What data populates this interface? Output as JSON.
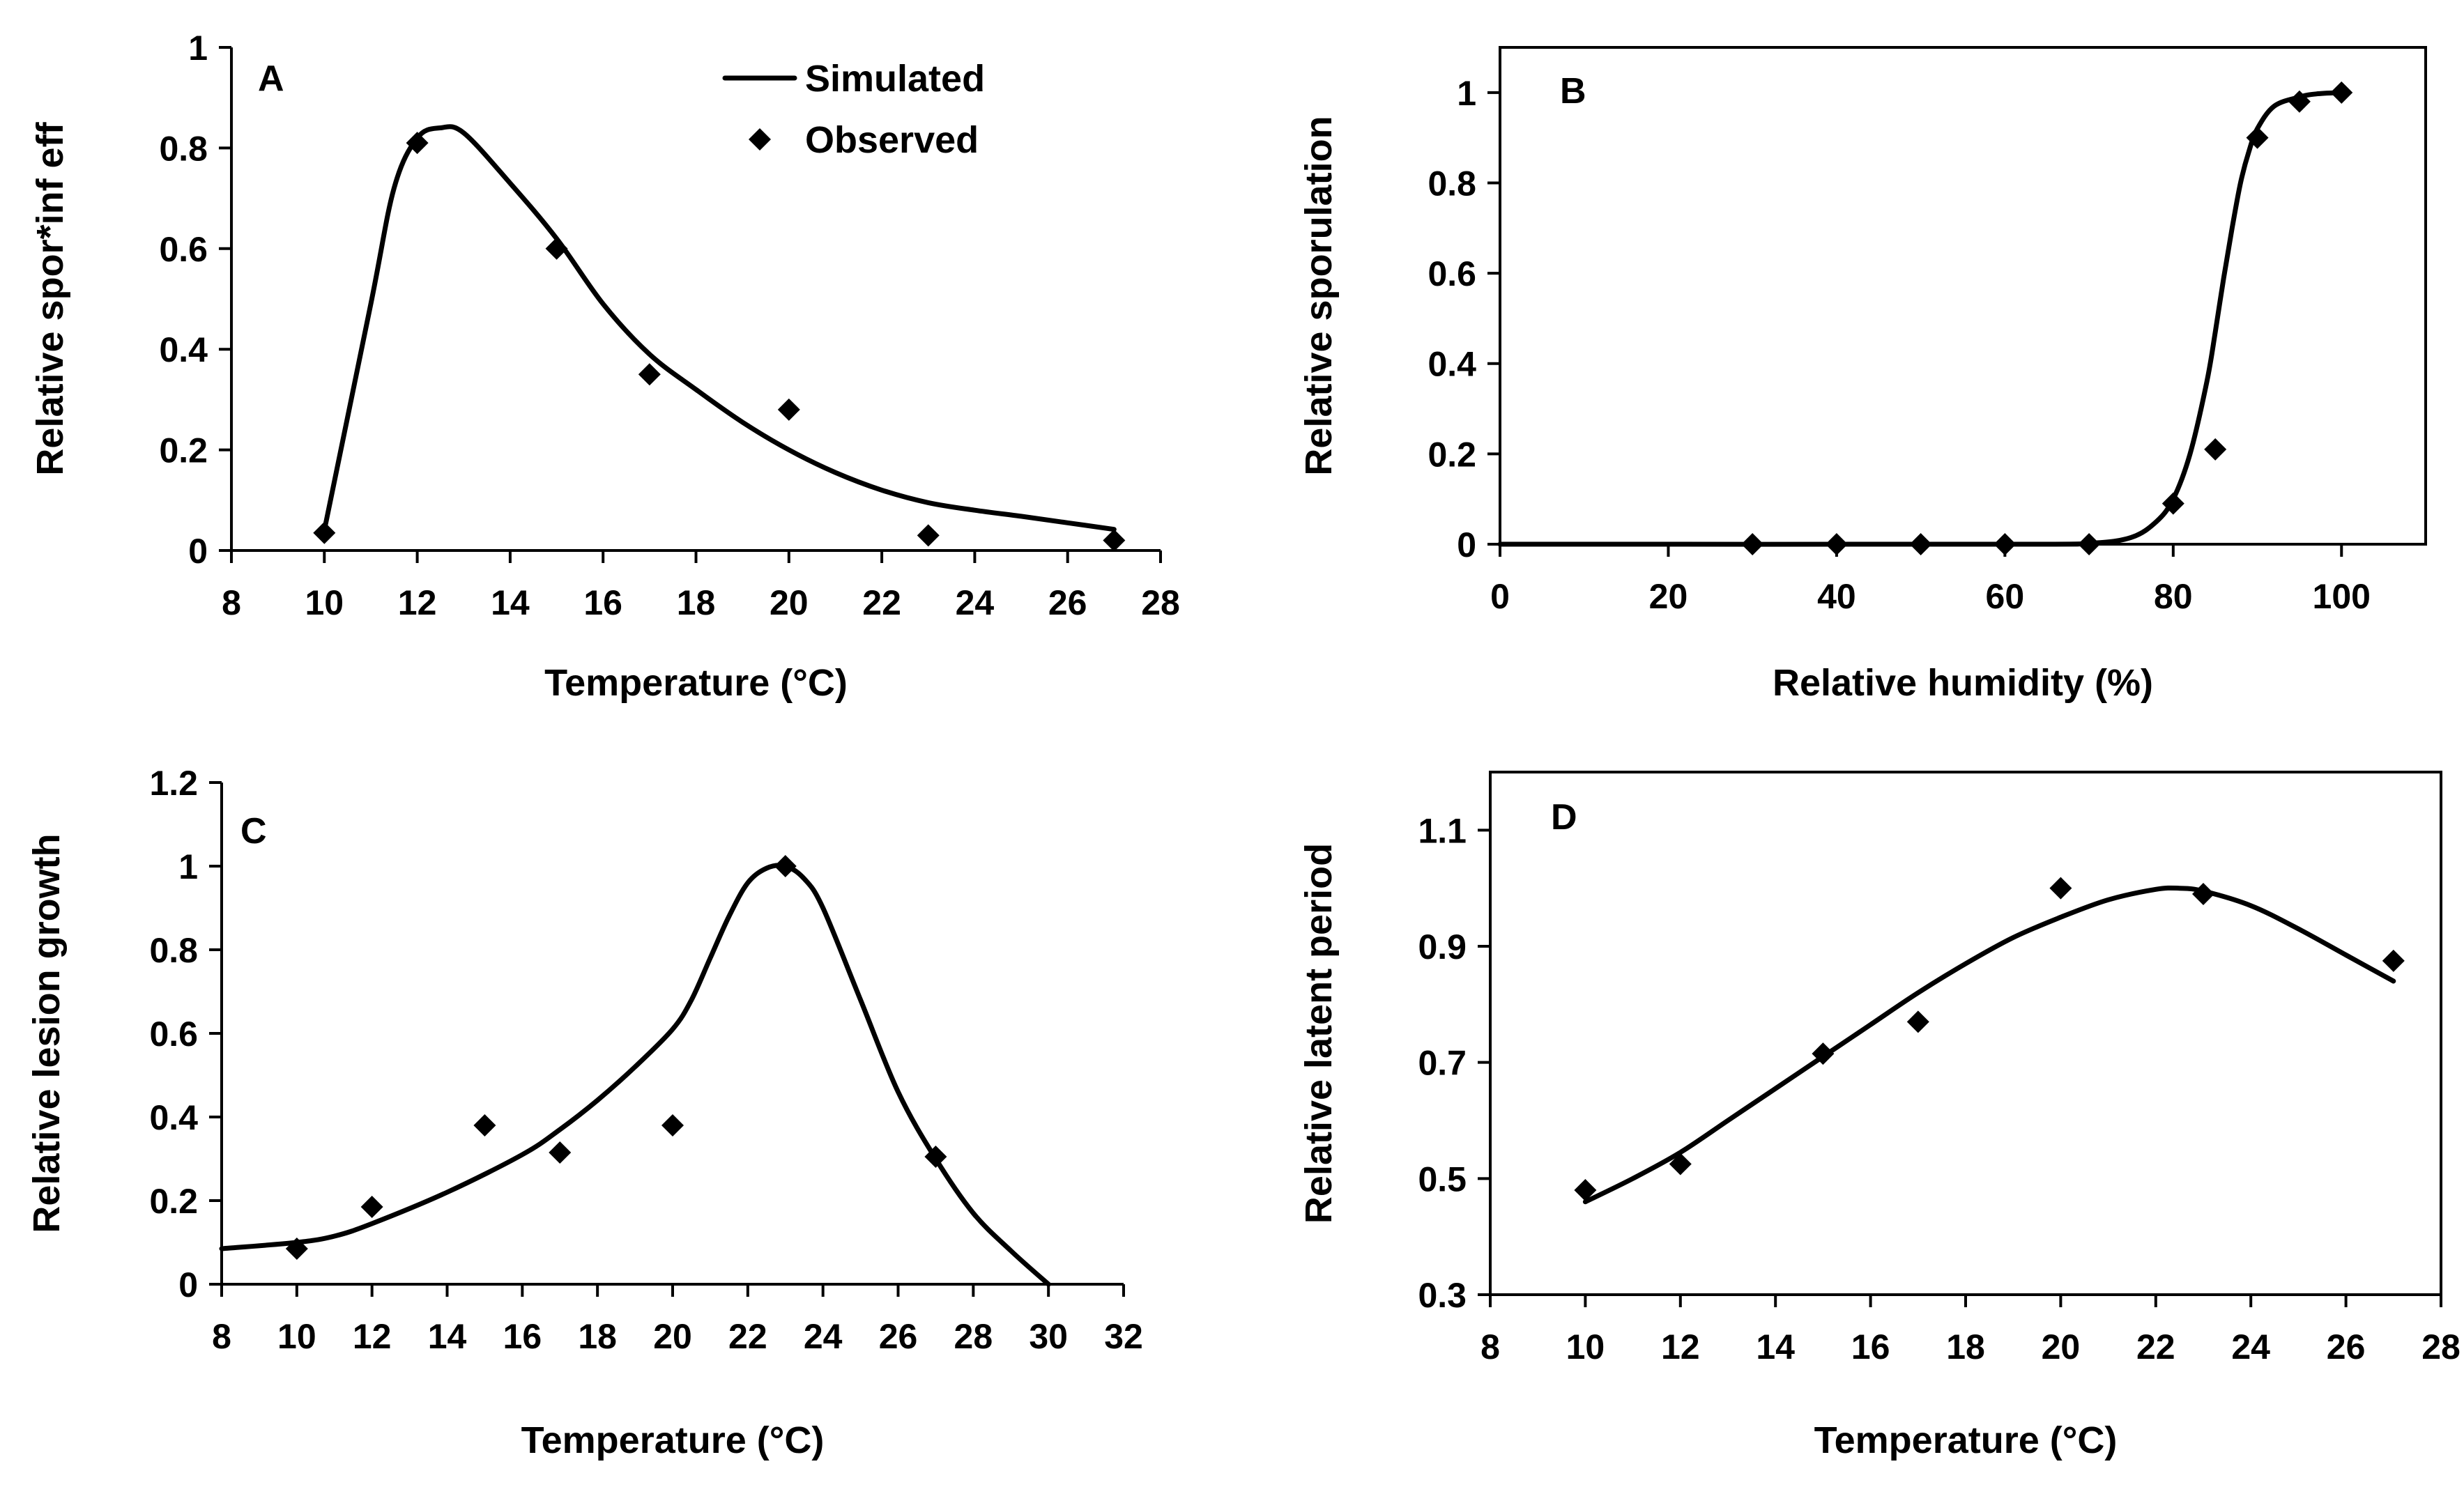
{
  "colors": {
    "line": "#000000",
    "marker": "#000000",
    "background": "#ffffff"
  },
  "chart_data": [
    {
      "id": "A",
      "type": "line",
      "panel_label": "A",
      "xlabel": "Temperature (°C)",
      "ylabel": "Relative spor*inf eff",
      "xlim": [
        8,
        28
      ],
      "ylim": [
        0,
        1
      ],
      "xticks": [
        8,
        10,
        12,
        14,
        16,
        18,
        20,
        22,
        24,
        26,
        28
      ],
      "yticks": [
        0,
        0.2,
        0.4,
        0.6,
        0.8,
        1
      ],
      "yticklabels": [
        "0",
        "0.2",
        "0.4",
        "0.6",
        "0.8",
        "1"
      ],
      "frame": false,
      "grid": false,
      "legend": {
        "position": "top-right",
        "entries": [
          {
            "label": "Simulated",
            "symbol": "line"
          },
          {
            "label": "Observed",
            "symbol": "diamond"
          }
        ]
      },
      "series": [
        {
          "name": "Simulated",
          "kind": "line",
          "x": [
            10,
            11,
            11.5,
            12,
            12.5,
            13,
            14,
            15,
            16,
            17,
            18,
            19,
            20,
            21,
            22,
            23,
            24,
            25,
            26,
            27
          ],
          "y": [
            0.04,
            0.49,
            0.72,
            0.82,
            0.84,
            0.83,
            0.73,
            0.62,
            0.49,
            0.39,
            0.32,
            0.255,
            0.2,
            0.155,
            0.12,
            0.095,
            0.08,
            0.068,
            0.055,
            0.042
          ]
        },
        {
          "name": "Observed",
          "kind": "scatter",
          "x": [
            10,
            12,
            15,
            17,
            20,
            23,
            27
          ],
          "y": [
            0.035,
            0.81,
            0.6,
            0.35,
            0.28,
            0.03,
            0.02
          ]
        }
      ]
    },
    {
      "id": "B",
      "type": "line",
      "panel_label": "B",
      "xlabel": "Relative humidity (%)",
      "ylabel": "Relative sporulation",
      "xlim": [
        0,
        110
      ],
      "ylim": [
        0,
        1.1
      ],
      "xticks": [
        0,
        20,
        40,
        60,
        80,
        100
      ],
      "yticks": [
        0,
        0.2,
        0.4,
        0.6,
        0.8,
        1
      ],
      "yticklabels": [
        "0",
        "0.2",
        "0.4",
        "0.6",
        "0.8",
        "1"
      ],
      "frame": true,
      "grid": false,
      "series": [
        {
          "name": "",
          "kind": "line",
          "x": [
            0,
            60,
            70,
            75,
            78,
            80,
            82,
            84,
            85,
            86,
            87,
            88,
            89,
            90,
            92,
            95,
            97,
            100
          ],
          "y": [
            0,
            0,
            0.002,
            0.015,
            0.05,
            0.1,
            0.2,
            0.36,
            0.47,
            0.59,
            0.7,
            0.8,
            0.87,
            0.92,
            0.97,
            0.99,
            0.997,
            1
          ]
        },
        {
          "name": "",
          "kind": "scatter",
          "x": [
            30,
            40,
            50,
            60,
            70,
            80,
            85,
            90,
            95,
            100
          ],
          "y": [
            0,
            0,
            0,
            0,
            0,
            0.09,
            0.21,
            0.9,
            0.98,
            1
          ]
        }
      ]
    },
    {
      "id": "C",
      "type": "line",
      "panel_label": "C",
      "xlabel": "Temperature (°C)",
      "ylabel": "Relative lesion growth",
      "xlim": [
        8,
        32
      ],
      "ylim": [
        0,
        1.2
      ],
      "xticks": [
        8,
        10,
        12,
        14,
        16,
        18,
        20,
        22,
        24,
        26,
        28,
        30,
        32
      ],
      "yticks": [
        0,
        0.2,
        0.4,
        0.6,
        0.8,
        1,
        1.2
      ],
      "yticklabels": [
        "0",
        "0.2",
        "0.4",
        "0.6",
        "0.8",
        "1",
        "1.2"
      ],
      "frame": false,
      "grid": false,
      "series": [
        {
          "name": "",
          "kind": "line",
          "x": [
            8,
            10,
            11,
            12,
            14,
            16,
            17,
            18,
            19,
            20,
            20.5,
            21,
            21.5,
            22,
            22.5,
            23,
            23.5,
            24,
            25,
            26,
            27,
            28,
            29,
            30
          ],
          "y": [
            0.085,
            0.1,
            0.115,
            0.145,
            0.22,
            0.31,
            0.37,
            0.44,
            0.52,
            0.61,
            0.68,
            0.78,
            0.88,
            0.96,
            0.995,
            1.0,
            0.97,
            0.9,
            0.68,
            0.46,
            0.3,
            0.17,
            0.08,
            0.0
          ]
        },
        {
          "name": "",
          "kind": "scatter",
          "x": [
            10,
            12,
            15,
            17,
            20,
            23,
            27
          ],
          "y": [
            0.085,
            0.185,
            0.38,
            0.315,
            0.38,
            1.0,
            0.305
          ]
        }
      ]
    },
    {
      "id": "D",
      "type": "line",
      "panel_label": "D",
      "xlabel": "Temperature (°C)",
      "ylabel": "Relative latent period",
      "xlim": [
        8,
        28
      ],
      "ylim": [
        0.3,
        1.2
      ],
      "xticks": [
        8,
        10,
        12,
        14,
        16,
        18,
        20,
        22,
        24,
        26,
        28
      ],
      "yticks": [
        0.3,
        0.5,
        0.7,
        0.9,
        1.1
      ],
      "yticklabels": [
        "0.3",
        "0.5",
        "0.7",
        "0.9",
        "1.1"
      ],
      "frame": true,
      "grid": false,
      "series": [
        {
          "name": "",
          "kind": "line",
          "x": [
            10,
            11,
            12,
            13,
            14,
            15,
            16,
            17,
            18,
            19,
            20,
            21,
            22,
            22.5,
            23,
            24,
            25,
            26,
            27
          ],
          "y": [
            0.46,
            0.5,
            0.545,
            0.6,
            0.655,
            0.71,
            0.765,
            0.82,
            0.87,
            0.915,
            0.95,
            0.98,
            0.998,
            1.0,
            0.995,
            0.97,
            0.93,
            0.885,
            0.84
          ]
        },
        {
          "name": "",
          "kind": "scatter",
          "x": [
            10,
            12,
            15,
            17,
            20,
            23,
            27
          ],
          "y": [
            0.48,
            0.525,
            0.715,
            0.77,
            1.0,
            0.99,
            0.875
          ]
        }
      ]
    }
  ]
}
